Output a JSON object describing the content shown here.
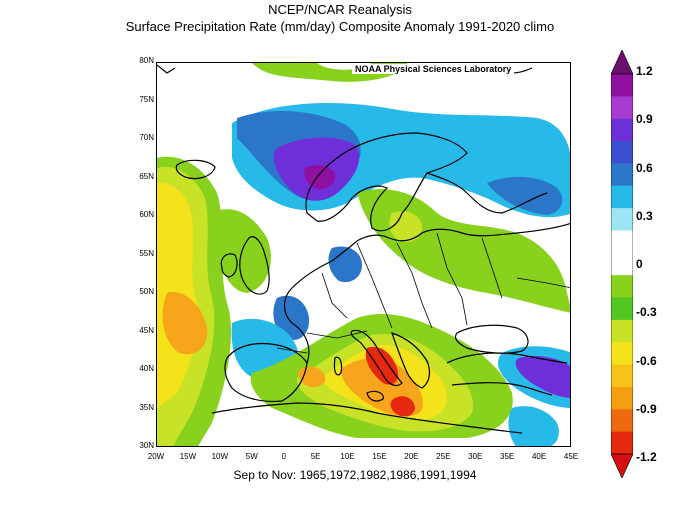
{
  "title": {
    "line1": "NCEP/NCAR Reanalysis",
    "line2": "Surface Precipitation Rate (mm/day) Composite Anomaly 1991-2020 climo"
  },
  "credit": "NOAA Physical Sciences Laboratory",
  "subtitle": "Sep to Nov: 1965,1972,1982,1986,1991,1994",
  "lat_labels": [
    "80N",
    "75N",
    "70N",
    "65N",
    "60N",
    "55N",
    "50N",
    "45N",
    "40N",
    "35N",
    "30N"
  ],
  "lon_labels": [
    "20W",
    "15W",
    "10W",
    "5W",
    "0",
    "5E",
    "10E",
    "15E",
    "20E",
    "25E",
    "30E",
    "35E",
    "40E",
    "45E"
  ],
  "colorbar": {
    "labels": [
      "1.2",
      "0.9",
      "0.6",
      "0.3",
      "0",
      "-0.3",
      "-0.6",
      "-0.9",
      "-1.2"
    ],
    "colors": [
      "#6a0f6e",
      "#8e0fa0",
      "#a83bd0",
      "#6f2fd8",
      "#3b4fd1",
      "#2b76c8",
      "#27b9e8",
      "#9ee5f3",
      "#ffffff",
      "#ffffff",
      "#88d21d",
      "#53c622",
      "#c8e228",
      "#f4e21a",
      "#f7c21a",
      "#f59e13",
      "#ee6a10",
      "#e5280e",
      "#d60e12"
    ]
  },
  "map_colors": {
    "cyan": "#27b9e8",
    "blue": "#2b76c8",
    "violet": "#6f2fd8",
    "purple": "#8e0fa0",
    "green": "#88d21d",
    "yellowgreen": "#c8e228",
    "yellow": "#f4e21a",
    "orange": "#f7a51a",
    "red": "#e5280e"
  }
}
